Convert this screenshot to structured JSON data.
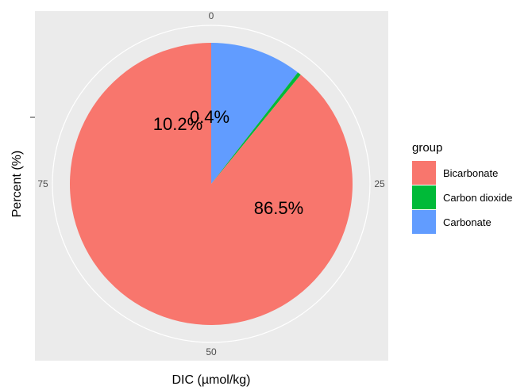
{
  "chart_data": {
    "type": "pie",
    "xlabel": "DIC  (µmol/kg)",
    "ylabel": "Percent (%)",
    "theta_ticks": [
      {
        "label": "0",
        "value": 0
      },
      {
        "label": "25",
        "value": 25
      },
      {
        "label": "50",
        "value": 50
      },
      {
        "label": "75",
        "value": 75
      }
    ],
    "legend": {
      "title": "group",
      "position": "right"
    },
    "slices": [
      {
        "name": "Carbonate",
        "value": 10.2,
        "label": "10.2%",
        "color": "#619CFF"
      },
      {
        "name": "Carbon dioxide",
        "value": 0.4,
        "label": "0.4%",
        "color": "#00BA38"
      },
      {
        "name": "Bicarbonate",
        "value": 86.5,
        "label": "86.5%",
        "color": "#F8766D"
      }
    ],
    "legend_order": [
      "Bicarbonate",
      "Carbon dioxide",
      "Carbonate"
    ],
    "colors": {
      "panel": "#EBEBEB",
      "grid": "#FFFFFF"
    }
  }
}
